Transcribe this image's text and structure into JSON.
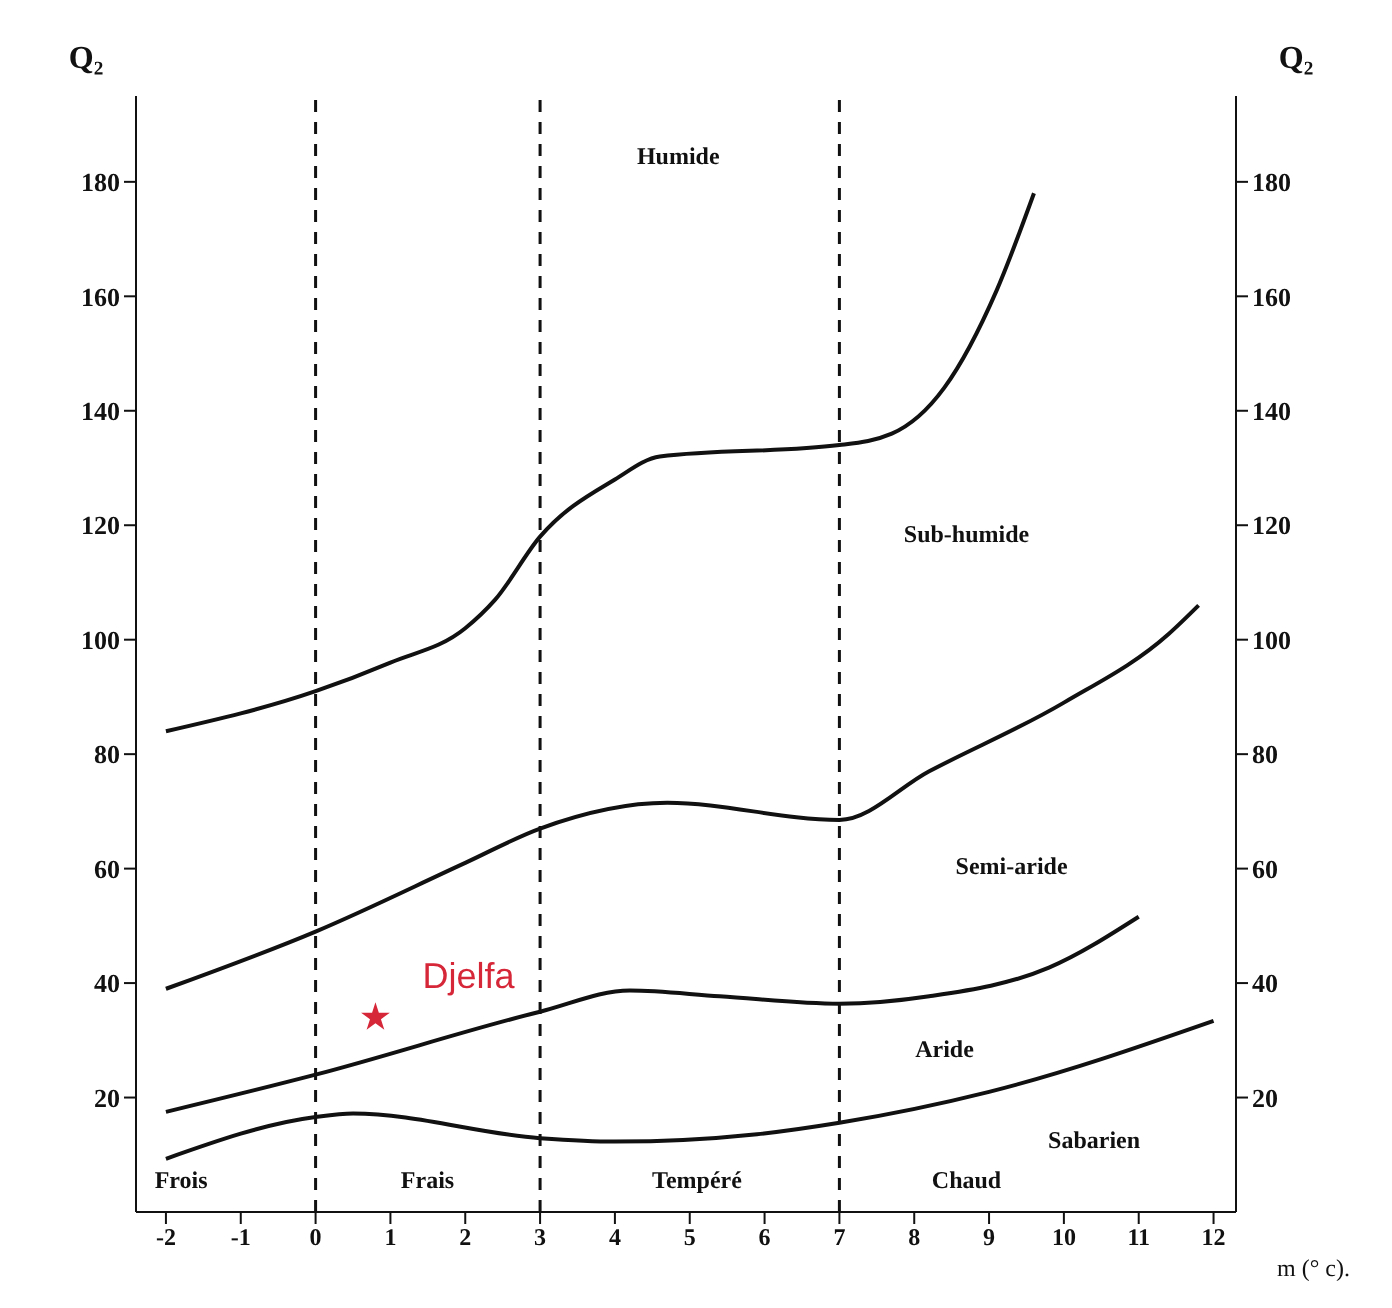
{
  "chart_data": {
    "type": "line",
    "xlabel": "m (° c).",
    "ylabel": "Q₂",
    "y2label": "Q₂",
    "xlim": [
      -2.4,
      12.3
    ],
    "xticks": [
      -2,
      -1,
      0,
      1,
      2,
      3,
      4,
      5,
      6,
      7,
      8,
      9,
      10,
      11,
      12
    ],
    "ylim": [
      0,
      195
    ],
    "yticks": [
      20,
      40,
      60,
      80,
      100,
      120,
      140,
      160,
      180
    ],
    "y2lim": [
      0,
      195
    ],
    "y2ticks": [
      20,
      40,
      60,
      80,
      100,
      120,
      140,
      160,
      180
    ],
    "grid": false,
    "legend": false,
    "marker": "none",
    "line_style": "solid",
    "series": [
      {
        "color": "#111111",
        "x": [
          -2,
          0,
          1,
          2,
          2.4,
          3,
          4,
          4.6,
          7,
          7.7,
          8.4,
          9.1,
          9.6
        ],
        "values": [
          84,
          91,
          96,
          102,
          107,
          118,
          128,
          132,
          134,
          136,
          144,
          161,
          178
        ]
      },
      {
        "color": "#111111",
        "x": [
          -2,
          0,
          2,
          3,
          4.7,
          7,
          8.2,
          10,
          11.4,
          11.8
        ],
        "values": [
          39,
          49,
          61,
          67,
          71.5,
          68.5,
          77,
          89,
          101,
          106
        ]
      },
      {
        "color": "#111111",
        "x": [
          -2,
          0,
          3,
          4.2,
          5.4,
          7,
          8.2,
          9.8,
          11
        ],
        "values": [
          17.5,
          24,
          35,
          38.7,
          37.7,
          36.4,
          37.7,
          42.7,
          51.6
        ]
      },
      {
        "color": "#111111",
        "x": [
          -2,
          0,
          0.5,
          3,
          4,
          5.9,
          7,
          9,
          12
        ],
        "values": [
          9.3,
          16.6,
          17.2,
          12.9,
          12.3,
          13.6,
          15.6,
          21,
          33.4
        ]
      },
      {
        "type": "scatter",
        "name": "Djelfa",
        "color": "#d62739",
        "marker": "star",
        "x": [
          0.8
        ],
        "values": [
          34
        ]
      }
    ],
    "ref_lines": [
      {
        "axis": "x",
        "value": 0,
        "color": "#111111",
        "line_style": "dashed"
      },
      {
        "axis": "x",
        "value": 3,
        "color": "#111111",
        "line_style": "dashed"
      },
      {
        "axis": "x",
        "value": 7,
        "color": "#111111",
        "line_style": "dashed"
      }
    ],
    "annotations": [
      "Humide",
      "Sub-humide",
      "Semi-aride",
      "Aride",
      "Sabarien",
      "Frois",
      "Frais",
      "Tempéré",
      "Chaud"
    ]
  }
}
